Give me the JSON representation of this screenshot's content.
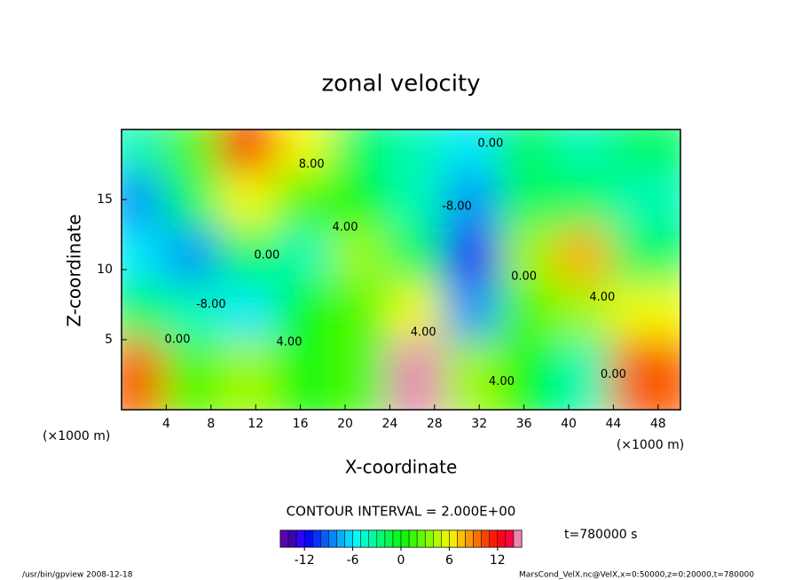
{
  "chart_data": {
    "type": "contour",
    "title": "zonal velocity",
    "x_label": "X-coordinate",
    "y_label": "Z-coordinate",
    "x_unit": "(×1000 m)",
    "y_unit": "(×1000 m)",
    "xlim": [
      0,
      50
    ],
    "xticks": [
      4,
      8,
      12,
      16,
      20,
      24,
      28,
      32,
      36,
      40,
      44,
      48
    ],
    "ylim": [
      0,
      20
    ],
    "yticks": [
      5,
      10,
      15
    ],
    "x": [
      2.5,
      7.5,
      12.5,
      17.5,
      22.5,
      27.5,
      32.5,
      37.5,
      42.5,
      47.5
    ],
    "y": [
      18,
      14,
      10,
      6,
      2
    ],
    "values": [
      [
        -4,
        2,
        12,
        6,
        -2,
        -4,
        -6,
        -2,
        -4,
        -2
      ],
      [
        -8,
        -2,
        6,
        2,
        0,
        -4,
        -8,
        -2,
        -2,
        -4
      ],
      [
        -6,
        -8,
        -2,
        -4,
        4,
        -2,
        -12,
        4,
        8,
        -2
      ],
      [
        -2,
        -4,
        -6,
        0,
        2,
        6,
        -8,
        2,
        4,
        6
      ],
      [
        10,
        2,
        4,
        0,
        2,
        16,
        4,
        0,
        -4,
        10
      ]
    ],
    "contour_labels": [
      {
        "text": "8.00",
        "x": 17,
        "y": 17.5
      },
      {
        "text": "-8.00",
        "x": 30,
        "y": 14.5
      },
      {
        "text": "0.00",
        "x": 33,
        "y": 19
      },
      {
        "text": "0.00",
        "x": 13,
        "y": 11
      },
      {
        "text": "-8.00",
        "x": 8,
        "y": 7.5
      },
      {
        "text": "0.00",
        "x": 5,
        "y": 5
      },
      {
        "text": "4.00",
        "x": 15,
        "y": 4.8
      },
      {
        "text": "4.00",
        "x": 27,
        "y": 5.5
      },
      {
        "text": "4.00",
        "x": 43,
        "y": 8
      },
      {
        "text": "0.00",
        "x": 36,
        "y": 9.5
      },
      {
        "text": "4.00",
        "x": 34,
        "y": 2
      },
      {
        "text": "0.00",
        "x": 44,
        "y": 2.5
      },
      {
        "text": "4.00",
        "x": 20,
        "y": 13
      }
    ],
    "contour_interval": "CONTOUR INTERVAL = 2.000E+00",
    "time": "t=780000 s",
    "clim": [
      -15,
      15
    ],
    "cticks": [
      -12,
      -6,
      0,
      6,
      12
    ],
    "footer_left": "/usr/bin/gpview  2008-12-18",
    "footer_right": "MarsCond_VelX.nc@VelX,x=0:50000,z=0:20000,t=780000"
  }
}
